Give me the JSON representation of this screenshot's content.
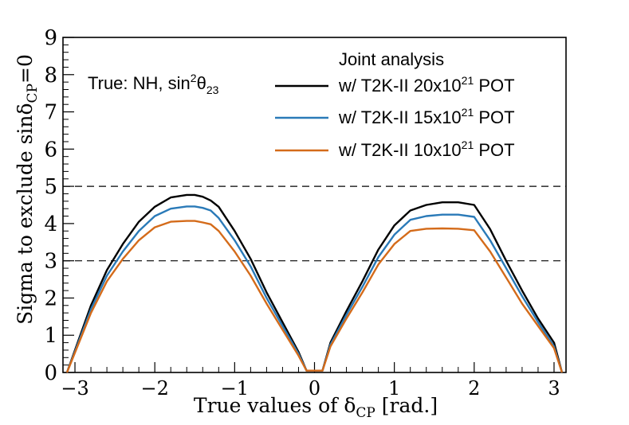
{
  "chart_data": {
    "type": "line",
    "title": "",
    "xlabel": "True values of δ_CP [rad.]",
    "xlabel_parts": {
      "pre": "True values of δ",
      "sub": "CP",
      "post": " [rad.]"
    },
    "ylabel": "Sigma to exclude sinδ_CP=0",
    "ylabel_parts": {
      "pre": "Sigma to exclude sinδ",
      "sub": "CP",
      "post": "=0"
    },
    "xlim": [
      -3.15,
      3.15
    ],
    "ylim": [
      0,
      9
    ],
    "xticks": [
      -3,
      -2,
      -1,
      0,
      1,
      2,
      3
    ],
    "xtick_labels": [
      "−3",
      "−2",
      "−1",
      "0",
      "1",
      "2",
      "3"
    ],
    "yticks": [
      0,
      1,
      2,
      3,
      4,
      5,
      6,
      7,
      8,
      9
    ],
    "ytick_labels": [
      "0",
      "1",
      "2",
      "3",
      "4",
      "5",
      "6",
      "7",
      "8",
      "9"
    ],
    "reference_lines": [
      3,
      5
    ],
    "annotation": {
      "text": "True: NH, sin²θ₂₃",
      "pre": "True: NH, sin",
      "sup": "2",
      "mid": "θ",
      "sub": "23"
    },
    "legend": {
      "title": "Joint analysis",
      "position": "top-right",
      "entries": [
        {
          "pre": "w/ T2K-II 20x10",
          "sup": "21",
          "post": " POT"
        },
        {
          "pre": "w/ T2K-II 15x10",
          "sup": "21",
          "post": " POT"
        },
        {
          "pre": "w/ T2K-II 10x10",
          "sup": "21",
          "post": " POT"
        }
      ]
    },
    "x": [
      -3.1,
      -2.8,
      -2.6,
      -2.4,
      -2.2,
      -2.0,
      -1.8,
      -1.6,
      -1.5,
      -1.4,
      -1.3,
      -1.2,
      -1.0,
      -0.8,
      -0.6,
      -0.4,
      -0.2,
      -0.1,
      -0.05,
      0.05,
      0.1,
      0.2,
      0.4,
      0.6,
      0.8,
      1.0,
      1.2,
      1.4,
      1.6,
      1.8,
      2.0,
      2.2,
      2.4,
      2.6,
      2.8,
      3.0,
      3.1
    ],
    "series": [
      {
        "name": "w/ T2K-II 20x10^21 POT",
        "color": "#000000",
        "values": [
          0.0,
          1.8,
          2.75,
          3.45,
          4.05,
          4.45,
          4.7,
          4.77,
          4.77,
          4.72,
          4.62,
          4.45,
          3.8,
          3.05,
          2.15,
          1.35,
          0.55,
          0.05,
          0.05,
          0.05,
          0.05,
          0.8,
          1.65,
          2.45,
          3.3,
          3.95,
          4.35,
          4.5,
          4.57,
          4.57,
          4.5,
          3.85,
          3.0,
          2.2,
          1.45,
          0.8,
          0.0
        ]
      },
      {
        "name": "w/ T2K-II 15x10^21 POT",
        "color": "#2a7ab8",
        "values": [
          0.0,
          1.7,
          2.6,
          3.25,
          3.8,
          4.2,
          4.4,
          4.46,
          4.46,
          4.42,
          4.35,
          4.15,
          3.55,
          2.85,
          2.0,
          1.25,
          0.5,
          0.05,
          0.05,
          0.05,
          0.05,
          0.75,
          1.55,
          2.3,
          3.1,
          3.7,
          4.1,
          4.2,
          4.24,
          4.24,
          4.18,
          3.55,
          2.8,
          2.05,
          1.35,
          0.7,
          0.0
        ]
      },
      {
        "name": "w/ T2K-II 10x10^21 POT",
        "color": "#d46b1a",
        "values": [
          0.0,
          1.6,
          2.45,
          3.05,
          3.55,
          3.9,
          4.05,
          4.07,
          4.07,
          4.03,
          3.98,
          3.8,
          3.25,
          2.6,
          1.85,
          1.15,
          0.45,
          0.05,
          0.05,
          0.05,
          0.05,
          0.7,
          1.45,
          2.15,
          2.9,
          3.45,
          3.8,
          3.86,
          3.87,
          3.86,
          3.82,
          3.25,
          2.55,
          1.85,
          1.25,
          0.65,
          0.0
        ]
      }
    ]
  }
}
